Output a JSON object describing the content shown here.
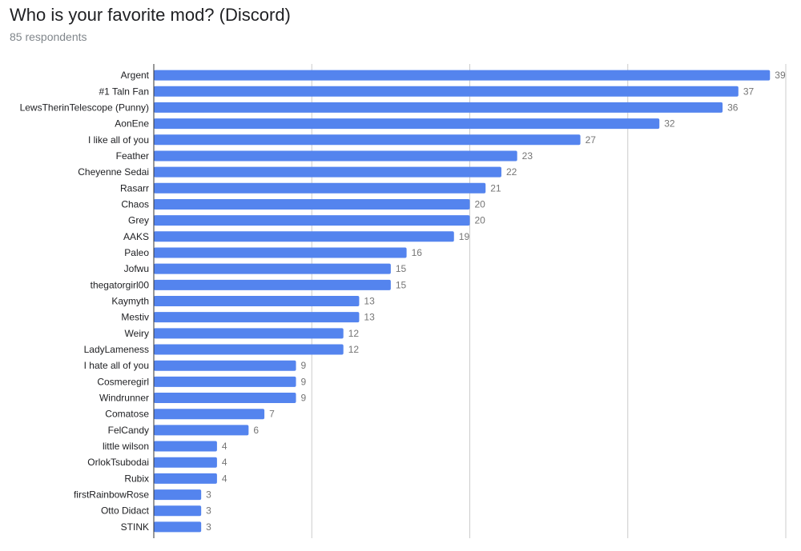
{
  "header": {
    "title": "Who is your favorite mod? (Discord)",
    "subtitle": "85 respondents"
  },
  "colors": {
    "bar": "#5484ee",
    "grid": "#cccccc",
    "axis": "#333333"
  },
  "chart_data": {
    "type": "bar",
    "orientation": "horizontal",
    "title": "Who is your favorite mod? (Discord)",
    "subtitle": "85 respondents",
    "xlim": [
      0,
      40
    ],
    "gridlines": [
      0,
      10,
      20,
      30,
      40
    ],
    "grid": true,
    "categories": [
      "Argent",
      "#1 Taln Fan",
      "LewsTherinTelescope (Punny)",
      "AonEne",
      "I like all of you",
      "Feather",
      "Cheyenne Sedai",
      "Rasarr",
      "Chaos",
      "Grey",
      "AAKS",
      "Paleo",
      "Jofwu",
      "thegatorgirl00",
      "Kaymyth",
      "Mestiv",
      "Weiry",
      "LadyLameness",
      "I hate all of you",
      "Cosmeregirl",
      "Windrunner",
      "Comatose",
      "FelCandy",
      "little wilson",
      "OrlokTsubodai",
      "Rubix",
      "firstRainbowRose",
      "Otto Didact",
      "STINK"
    ],
    "values": [
      39,
      37,
      36,
      32,
      27,
      23,
      22,
      21,
      20,
      20,
      19,
      16,
      15,
      15,
      13,
      13,
      12,
      12,
      9,
      9,
      9,
      7,
      6,
      4,
      4,
      4,
      3,
      3,
      3
    ]
  }
}
